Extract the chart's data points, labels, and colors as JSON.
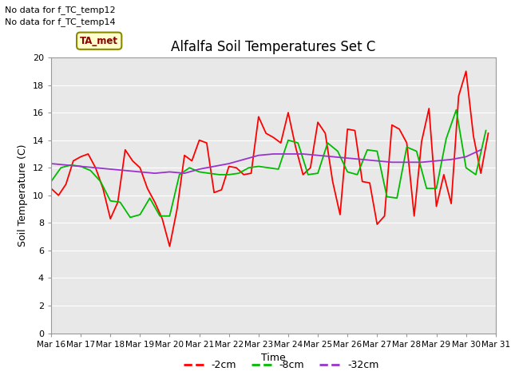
{
  "title": "Alfalfa Soil Temperatures Set C",
  "xlabel": "Time",
  "ylabel": "Soil Temperature (C)",
  "no_data_text": [
    "No data for f_TC_temp12",
    "No data for f_TC_temp14"
  ],
  "ta_met_label": "TA_met",
  "legend_labels": [
    "-2cm",
    "-8cm",
    "-32cm"
  ],
  "legend_colors": [
    "#ff0000",
    "#00bb00",
    "#9933cc"
  ],
  "fig_bg_color": "#ffffff",
  "plot_bg_color": "#e8e8e8",
  "grid_color": "#ffffff",
  "ylim": [
    0,
    20
  ],
  "yticks": [
    0,
    2,
    4,
    6,
    8,
    10,
    12,
    14,
    16,
    18,
    20
  ],
  "x_labels": [
    "Mar 16",
    "Mar 17",
    "Mar 18",
    "Mar 19",
    "Mar 20",
    "Mar 21",
    "Mar 22",
    "Mar 23",
    "Mar 24",
    "Mar 25",
    "Mar 26",
    "Mar 27",
    "Mar 28",
    "Mar 29",
    "Mar 30",
    "Mar 31"
  ],
  "x_tick_positions": [
    0,
    1,
    2,
    3,
    4,
    5,
    6,
    7,
    8,
    9,
    10,
    11,
    12,
    13,
    14,
    15
  ],
  "red_x": [
    0,
    0.25,
    0.5,
    0.75,
    1.0,
    1.25,
    1.5,
    1.75,
    2.0,
    2.25,
    2.5,
    2.75,
    3.0,
    3.25,
    3.5,
    3.75,
    4.0,
    4.25,
    4.5,
    4.75,
    5.0,
    5.25,
    5.5,
    5.75,
    6.0,
    6.25,
    6.5,
    6.75,
    7.0,
    7.25,
    7.5,
    7.75,
    8.0,
    8.25,
    8.5,
    8.75,
    9.0,
    9.25,
    9.5,
    9.75,
    10.0,
    10.25,
    10.5,
    10.75,
    11.0,
    11.25,
    11.5,
    11.75,
    12.0,
    12.25,
    12.5,
    12.75,
    13.0,
    13.25,
    13.5,
    13.75,
    14.0,
    14.25,
    14.5,
    14.75
  ],
  "red_y": [
    10.5,
    10.0,
    10.8,
    12.5,
    12.8,
    13.0,
    12.0,
    10.5,
    8.3,
    9.5,
    13.3,
    12.5,
    12.0,
    10.5,
    9.5,
    8.3,
    6.3,
    9.0,
    12.9,
    12.5,
    14.0,
    13.8,
    10.2,
    10.4,
    12.1,
    12.0,
    11.5,
    11.6,
    15.7,
    14.5,
    14.2,
    13.8,
    16.0,
    13.5,
    11.5,
    12.0,
    15.3,
    14.5,
    11.0,
    8.6,
    14.8,
    14.7,
    11.0,
    10.9,
    7.9,
    8.5,
    15.1,
    14.8,
    13.8,
    8.5,
    13.9,
    16.3,
    9.2,
    11.5,
    9.4,
    17.2,
    19.0,
    14.3,
    11.6,
    14.5
  ],
  "green_x": [
    0,
    0.33,
    0.67,
    1.0,
    1.33,
    1.67,
    2.0,
    2.33,
    2.67,
    3.0,
    3.33,
    3.67,
    4.0,
    4.33,
    4.67,
    5.0,
    5.33,
    5.67,
    6.0,
    6.33,
    6.67,
    7.0,
    7.33,
    7.67,
    8.0,
    8.33,
    8.67,
    9.0,
    9.33,
    9.67,
    10.0,
    10.33,
    10.67,
    11.0,
    11.33,
    11.67,
    12.0,
    12.33,
    12.67,
    13.0,
    13.33,
    13.67,
    14.0,
    14.33,
    14.67
  ],
  "green_y": [
    11.0,
    12.0,
    12.2,
    12.1,
    11.8,
    11.0,
    9.6,
    9.5,
    8.4,
    8.6,
    9.8,
    8.5,
    8.5,
    11.5,
    12.0,
    11.7,
    11.6,
    11.5,
    11.5,
    11.6,
    12.0,
    12.1,
    12.0,
    11.9,
    14.0,
    13.8,
    11.5,
    11.6,
    13.8,
    13.2,
    11.7,
    11.5,
    13.3,
    13.2,
    9.9,
    9.8,
    13.5,
    13.2,
    10.5,
    10.5,
    14.1,
    16.2,
    12.0,
    11.5,
    14.7
  ],
  "purple_x": [
    0,
    0.5,
    1.0,
    1.5,
    2.0,
    2.5,
    3.0,
    3.5,
    4.0,
    4.5,
    5.0,
    5.5,
    6.0,
    6.5,
    7.0,
    7.5,
    8.0,
    8.5,
    9.0,
    9.5,
    10.0,
    10.5,
    11.0,
    11.5,
    12.0,
    12.5,
    13.0,
    13.5,
    14.0,
    14.5
  ],
  "purple_y": [
    12.3,
    12.2,
    12.1,
    12.0,
    11.9,
    11.8,
    11.7,
    11.6,
    11.7,
    11.6,
    11.9,
    12.1,
    12.3,
    12.6,
    12.9,
    13.0,
    13.0,
    13.0,
    12.9,
    12.8,
    12.7,
    12.6,
    12.5,
    12.4,
    12.4,
    12.4,
    12.5,
    12.6,
    12.8,
    13.3
  ]
}
